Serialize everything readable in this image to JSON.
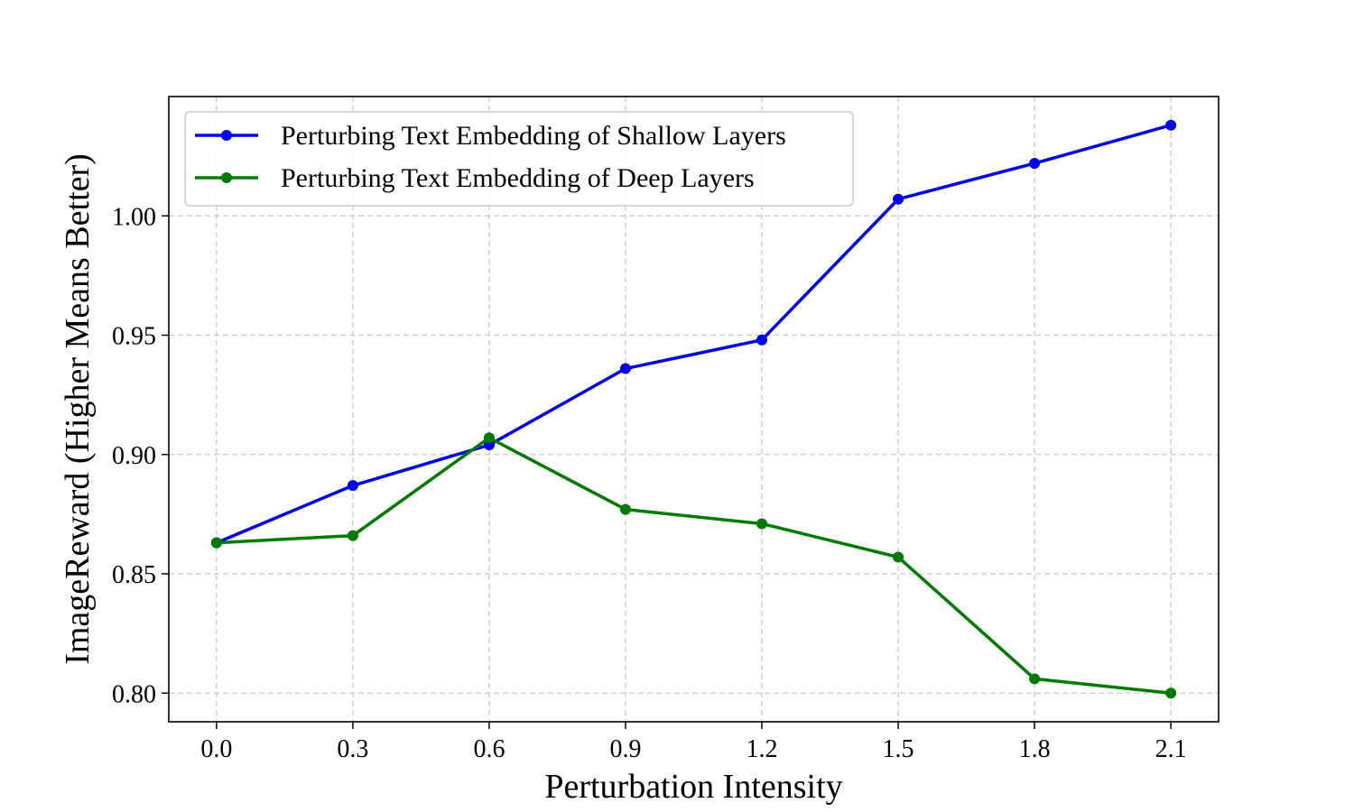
{
  "chart_data": {
    "type": "line",
    "title": "",
    "xlabel": "Perturbation Intensity",
    "ylabel": "ImageReward (Higher Means Better)",
    "x": [
      0.0,
      0.3,
      0.6,
      0.9,
      1.2,
      1.5,
      1.8,
      2.1
    ],
    "x_tick_labels": [
      "0.0",
      "0.3",
      "0.6",
      "0.9",
      "1.2",
      "1.5",
      "1.8",
      "2.1"
    ],
    "y_ticks": [
      0.8,
      0.85,
      0.9,
      0.95,
      1.0
    ],
    "y_tick_labels": [
      "0.80",
      "0.85",
      "0.90",
      "0.95",
      "1.00"
    ],
    "xlim": [
      -0.105,
      2.205
    ],
    "ylim": [
      0.788,
      1.05
    ],
    "grid": true,
    "legend_position": "top-left",
    "series": [
      {
        "name": "Perturbing Text Embedding of Shallow Layers",
        "color": "#0000ee",
        "values": [
          0.863,
          0.887,
          0.904,
          0.936,
          0.948,
          1.007,
          1.022,
          1.038
        ]
      },
      {
        "name": "Perturbing Text Embedding of Deep Layers",
        "color": "#007a00",
        "values": [
          0.863,
          0.866,
          0.907,
          0.877,
          0.871,
          0.857,
          0.806,
          0.8
        ]
      }
    ]
  }
}
